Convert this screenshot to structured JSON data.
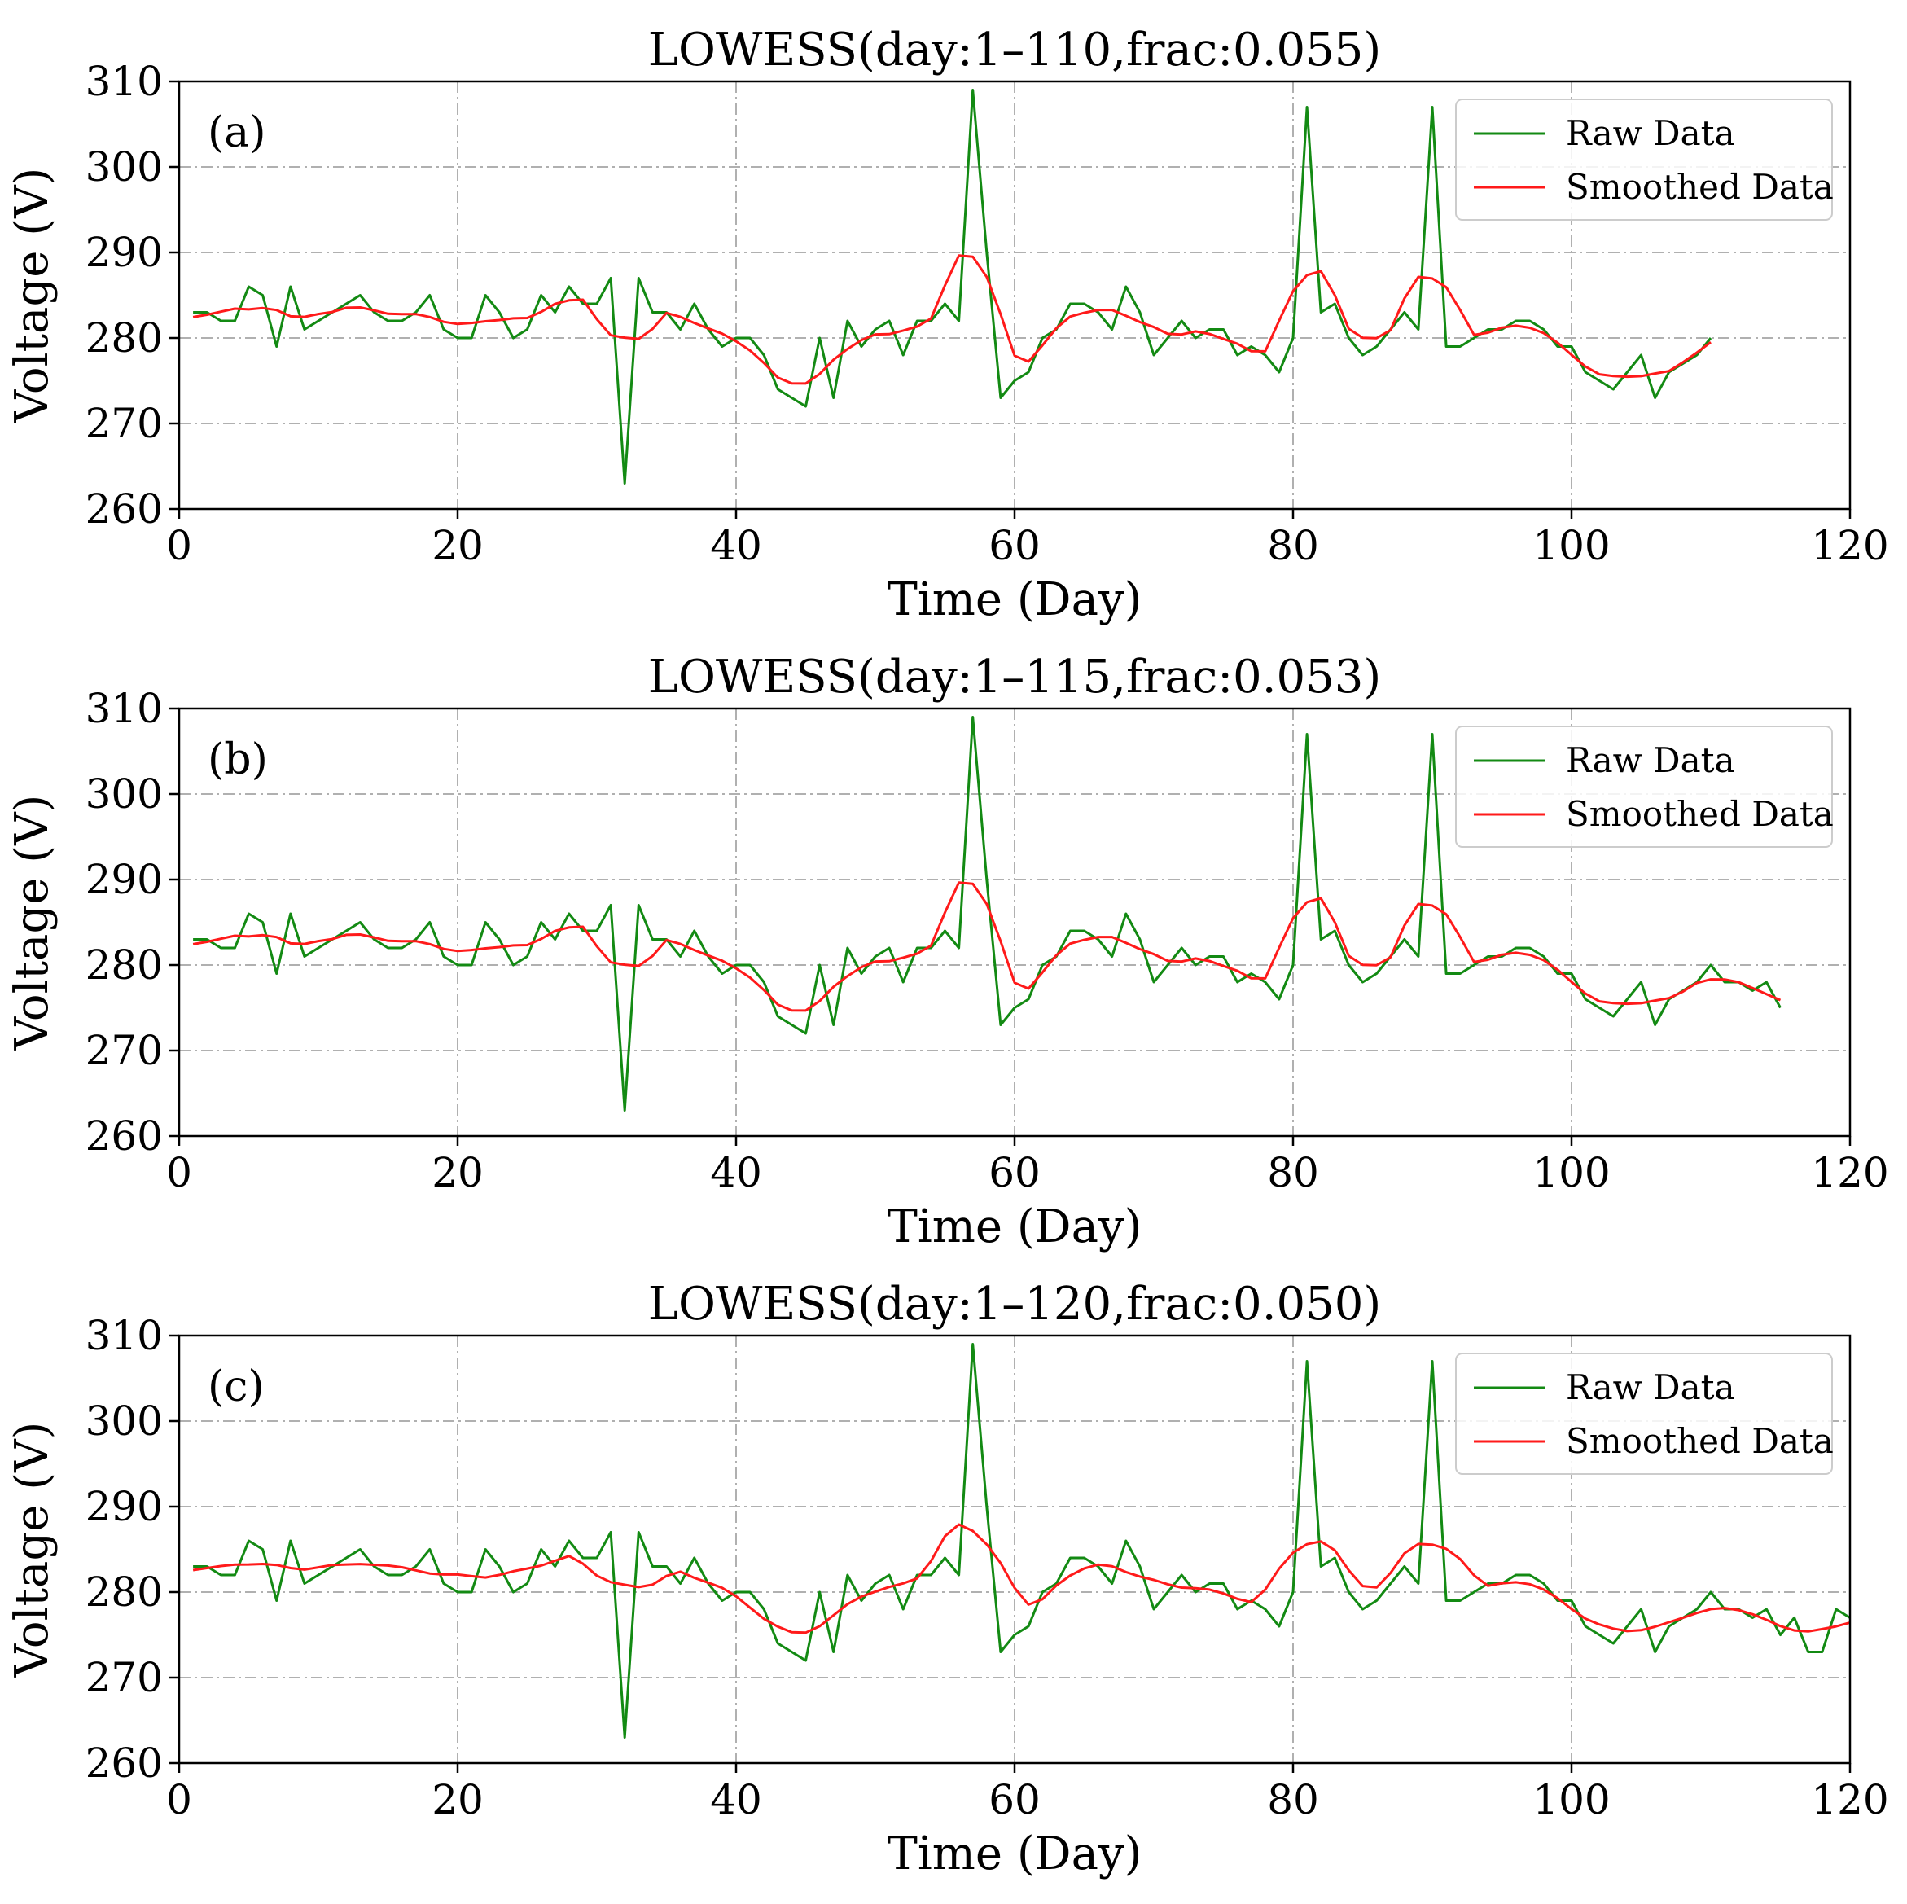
{
  "figure": {
    "colors": {
      "raw": "#138a13",
      "smoothed": "#ff1a1a",
      "grid": "#b0b0b0",
      "axes": "#000000"
    }
  },
  "raw_series_full": [
    283,
    283,
    282,
    282,
    286,
    285,
    279,
    286,
    281,
    282,
    283,
    284,
    285,
    283,
    282,
    282,
    283,
    285,
    281,
    280,
    280,
    285,
    283,
    280,
    281,
    285,
    283,
    286,
    284,
    284,
    287,
    263,
    287,
    283,
    283,
    281,
    284,
    281,
    279,
    280,
    280,
    278,
    274,
    273,
    272,
    280,
    273,
    282,
    279,
    281,
    282,
    278,
    282,
    282,
    284,
    282,
    309,
    290,
    273,
    275,
    276,
    280,
    281,
    284,
    284,
    283,
    281,
    286,
    283,
    278,
    280,
    282,
    280,
    281,
    281,
    278,
    279,
    278,
    276,
    280,
    307,
    283,
    284,
    280,
    278,
    279,
    281,
    283,
    281,
    307,
    279,
    279,
    280,
    281,
    281,
    282,
    282,
    281,
    279,
    279,
    276,
    275,
    274,
    276,
    278,
    273,
    276,
    277,
    278,
    280,
    278,
    278,
    277,
    278,
    275,
    277,
    273,
    273,
    278,
    277
  ],
  "chart_data": [
    {
      "type": "line",
      "panel": "(a)",
      "title": "LOWESS(day:1–110,frac:0.055)",
      "xlabel": "Time (Day)",
      "ylabel": "Voltage (V)",
      "xlim": [
        0,
        120
      ],
      "ylim": [
        260,
        310
      ],
      "xticks": [
        "0",
        "20",
        "40",
        "60",
        "80",
        "100",
        "120"
      ],
      "yticks": [
        "260",
        "270",
        "280",
        "290",
        "300",
        "310"
      ],
      "grid": true,
      "legend_position": "top-right",
      "day_range": [
        1,
        110
      ],
      "series": [
        {
          "name": "Raw Data",
          "role": "raw",
          "x_range": [
            1,
            110
          ]
        },
        {
          "name": "Smoothed Data",
          "role": "smoothed",
          "x_range": [
            1,
            110
          ]
        }
      ]
    },
    {
      "type": "line",
      "panel": "(b)",
      "title": "LOWESS(day:1–115,frac:0.053)",
      "xlabel": "Time (Day)",
      "ylabel": "Voltage (V)",
      "xlim": [
        0,
        120
      ],
      "ylim": [
        260,
        310
      ],
      "xticks": [
        "0",
        "20",
        "40",
        "60",
        "80",
        "100",
        "120"
      ],
      "yticks": [
        "260",
        "270",
        "280",
        "290",
        "300",
        "310"
      ],
      "grid": true,
      "legend_position": "top-right",
      "day_range": [
        1,
        115
      ],
      "series": [
        {
          "name": "Raw Data",
          "role": "raw",
          "x_range": [
            1,
            115
          ]
        },
        {
          "name": "Smoothed Data",
          "role": "smoothed",
          "x_range": [
            1,
            115
          ]
        }
      ]
    },
    {
      "type": "line",
      "panel": "(c)",
      "title": "LOWESS(day:1–120,frac:0.050)",
      "xlabel": "Time (Day)",
      "ylabel": "Voltage (V)",
      "xlim": [
        0,
        120
      ],
      "ylim": [
        260,
        310
      ],
      "xticks": [
        "0",
        "20",
        "40",
        "60",
        "80",
        "100",
        "120"
      ],
      "yticks": [
        "260",
        "270",
        "280",
        "290",
        "300",
        "310"
      ],
      "grid": true,
      "legend_position": "top-right",
      "day_range": [
        1,
        120
      ],
      "series": [
        {
          "name": "Raw Data",
          "role": "raw",
          "x_range": [
            1,
            120
          ]
        },
        {
          "name": "Smoothed Data",
          "role": "smoothed",
          "x_range": [
            1,
            120
          ]
        }
      ]
    }
  ]
}
